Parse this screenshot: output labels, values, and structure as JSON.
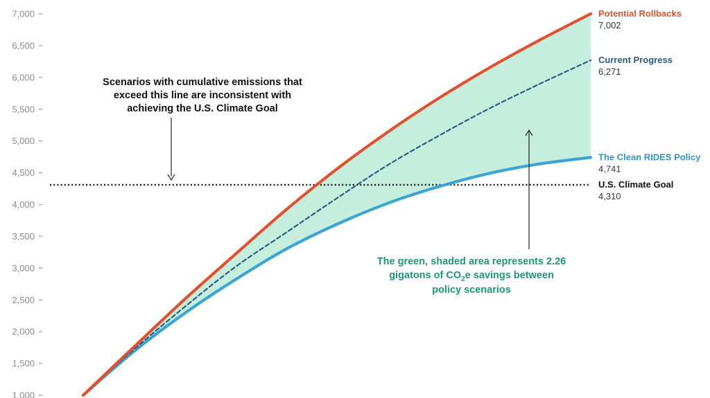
{
  "chart_data": {
    "type": "line",
    "title": "",
    "xlabel": "",
    "ylabel": "",
    "ylim": [
      1000,
      7000
    ],
    "yticks": [
      1000,
      1500,
      2000,
      2500,
      3000,
      3500,
      4000,
      4500,
      5000,
      5500,
      6000,
      6500,
      7000
    ],
    "ytick_labels": [
      "1,000",
      "1,500",
      "2,000",
      "2,500",
      "3,000",
      "3,500",
      "4,000",
      "4,500",
      "5,000",
      "5,500",
      "6,000",
      "6,500",
      "7,000"
    ],
    "xlim": [
      0,
      100
    ],
    "series": [
      {
        "name": "Potential Rollbacks",
        "end_label": "7,002",
        "color": "#e0522f",
        "style": "solid",
        "x": [
          0,
          10,
          20,
          30,
          40,
          50,
          60,
          70,
          80,
          90,
          100
        ],
        "values": [
          1000,
          1760,
          2510,
          3220,
          3920,
          4560,
          5140,
          5670,
          6150,
          6590,
          7002
        ]
      },
      {
        "name": "Current Progress",
        "end_label": "6,271",
        "color": "#2f5a86",
        "style": "dashed",
        "x": [
          0,
          10,
          20,
          30,
          40,
          50,
          60,
          70,
          80,
          90,
          100
        ],
        "values": [
          1000,
          1720,
          2390,
          3020,
          3560,
          4100,
          4620,
          5080,
          5510,
          5900,
          6271
        ]
      },
      {
        "name": "The Clean RIDES Policy",
        "end_label": "4,741",
        "color": "#3aa4d8",
        "style": "solid",
        "x": [
          0,
          10,
          20,
          30,
          40,
          50,
          60,
          70,
          80,
          90,
          100
        ],
        "values": [
          1000,
          1690,
          2290,
          2820,
          3300,
          3690,
          4020,
          4280,
          4490,
          4640,
          4741
        ]
      }
    ],
    "reference_line": {
      "name": "U.S. Climate Goal",
      "value": 4310,
      "end_label": "4,310",
      "color": "#111111"
    },
    "shaded_area": {
      "between": [
        "Potential Rollbacks",
        "The Clean RIDES Policy"
      ],
      "color": "#c5eedc"
    },
    "grid": false,
    "legend": "none (labels at line ends)"
  },
  "annotations": {
    "goal_note": [
      "Scenarios with cumulative emissions that",
      "exceed this line are inconsistent with",
      "achieving the U.S. Climate Goal"
    ],
    "savings_note": {
      "line1": "The green, shaded area represents 2.26",
      "line2_pre": "gigatons of CO",
      "line2_sub": "2",
      "line2_post": "e savings between",
      "line3": "policy scenarios",
      "color": "#1c9a6c"
    }
  }
}
